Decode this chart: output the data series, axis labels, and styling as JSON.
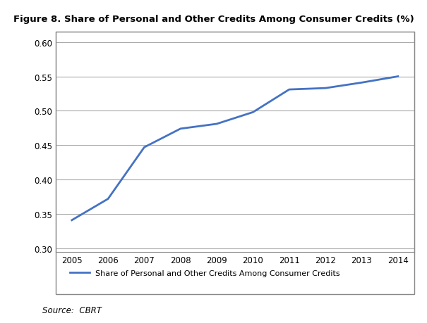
{
  "title": "Figure 8. Share of Personal and Other Credits Among Consumer Credits (%)",
  "years": [
    2005,
    2006,
    2007,
    2008,
    2009,
    2010,
    2011,
    2012,
    2013,
    2014
  ],
  "values": [
    0.341,
    0.372,
    0.447,
    0.474,
    0.481,
    0.498,
    0.531,
    0.533,
    0.541,
    0.55
  ],
  "line_color": "#4472C4",
  "line_width": 2.0,
  "ylim": [
    0.295,
    0.615
  ],
  "yticks": [
    0.3,
    0.35,
    0.4,
    0.45,
    0.5,
    0.55,
    0.6
  ],
  "legend_label": "Share of Personal and Other Credits Among Consumer Credits",
  "source": "Source:  CBRT",
  "bg_color": "#FFFFFF",
  "grid_color": "#AAAAAA",
  "title_fontsize": 9.5,
  "axis_fontsize": 8.5,
  "legend_fontsize": 8.0,
  "box_color": "#000000"
}
